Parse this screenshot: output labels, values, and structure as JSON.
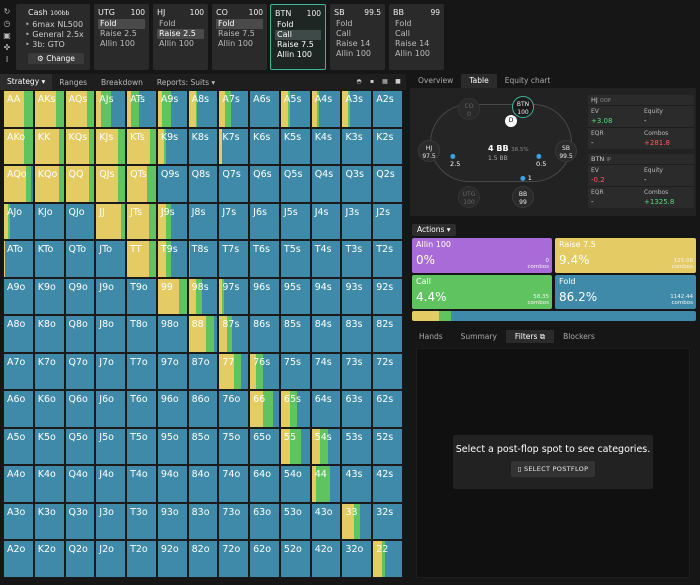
{
  "colors": {
    "fold": "#3e8aa8",
    "call": "#5fc460",
    "raise": "#e4cb63",
    "allin": "#a86bd8",
    "accent": "#3fb59a"
  },
  "sidebar_icons": [
    "refresh-icon",
    "clock-icon",
    "save-icon",
    "gamepad-icon",
    "text-cursor-icon"
  ],
  "cash": {
    "title": "Cash",
    "stack": "100bb",
    "items": [
      "6max NL500",
      "General 2.5x",
      "3b: GTO"
    ],
    "change_label": "Change",
    "change_icon": "⚙"
  },
  "positions": [
    {
      "name": "UTG",
      "stack": "100",
      "actions": [
        "Fold",
        "Raise 2.5",
        "Allin 100"
      ],
      "selected": 0
    },
    {
      "name": "HJ",
      "stack": "100",
      "actions": [
        "Fold",
        "Raise 2.5",
        "Allin 100"
      ],
      "selected": 1
    },
    {
      "name": "CO",
      "stack": "100",
      "actions": [
        "Fold",
        "Raise 7.5",
        "Allin 100"
      ],
      "selected": 0
    },
    {
      "name": "BTN",
      "stack": "100",
      "actions": [
        "Fold",
        "Call",
        "Raise 7.5",
        "Allin 100"
      ],
      "selected": 1,
      "active": true
    },
    {
      "name": "SB",
      "stack": "99.5",
      "actions": [
        "Fold",
        "Call",
        "Raise 14",
        "Allin 100"
      ],
      "selected": -1
    },
    {
      "name": "BB",
      "stack": "99",
      "actions": [
        "Fold",
        "Call",
        "Raise 14",
        "Allin 100"
      ],
      "selected": -1
    }
  ],
  "strategy_tabs": [
    "Strategy ▾",
    "Ranges",
    "Breakdown",
    "Reports: Suits ▾"
  ],
  "view_icons": [
    "compact-view-icon",
    "expand-view-icon",
    "grid-view-icon",
    "square-view-icon"
  ],
  "right_tabs": [
    "Overview",
    "Table",
    "Equity chart"
  ],
  "table": {
    "seats": [
      {
        "pos": "CO",
        "stack": "0"
      },
      {
        "pos": "BTN",
        "stack": "100"
      },
      {
        "pos": "SB",
        "stack": "99.5"
      },
      {
        "pos": "BB",
        "stack": "99"
      },
      {
        "pos": "UTG",
        "stack": "100"
      },
      {
        "pos": "HJ",
        "stack": "97.5"
      }
    ],
    "pot": "4 BB",
    "pot_pct": "38.5%",
    "pot_sub": "1.5 BB",
    "dealer": "D",
    "bets": {
      "hj": "2.5",
      "sb": "0.5",
      "bb": "1"
    }
  },
  "stats": [
    {
      "header": "HJ",
      "sub": "OOP",
      "ev": "+3.08",
      "equity": "-",
      "eqr": "-",
      "combos": "+281.8"
    },
    {
      "header": "BTN",
      "sub": "IP",
      "ev": "-0.2",
      "equity": "-",
      "eqr": "-",
      "combos": "+1325.8"
    }
  ],
  "stat_labels": {
    "ev": "EV",
    "equity": "Equity",
    "eqr": "EQR",
    "combos": "Combos"
  },
  "actions_label": "Actions ▾",
  "actions": [
    {
      "name": "Allin 100",
      "pct": "0%",
      "combos": "0",
      "frac": 0.0
    },
    {
      "name": "Raise 7.5",
      "pct": "9.4%",
      "combos": "125.08",
      "frac": 0.094
    },
    {
      "name": "Call",
      "pct": "4.4%",
      "combos": "58.35",
      "frac": 0.044
    },
    {
      "name": "Fold",
      "pct": "86.2%",
      "combos": "1142.44",
      "frac": 0.862
    }
  ],
  "combos_word": "combos",
  "bottom_tabs": [
    "Hands",
    "Summary",
    "Filters",
    "Blockers"
  ],
  "filters_message": "Select a post-flop spot to see categories.",
  "select_postflop": "SELECT POSTFLOP",
  "ranks": [
    "A",
    "K",
    "Q",
    "J",
    "T",
    "9",
    "8",
    "7",
    "6",
    "5",
    "4",
    "3",
    "2"
  ],
  "grid": [
    [
      [
        0,
        0.3,
        0.7
      ],
      [
        0,
        0.25,
        0.75
      ],
      [
        0,
        0.25,
        0.75
      ],
      [
        0.5,
        0.35,
        0.15
      ],
      [
        0.6,
        0.25,
        0.15
      ],
      [
        0.55,
        0.3,
        0.15
      ],
      [
        0.7,
        0.05,
        0.25
      ],
      [
        0.6,
        0.2,
        0.2
      ],
      [
        1,
        0,
        0
      ],
      [
        0.7,
        0.05,
        0.25
      ],
      [
        0.75,
        0.05,
        0.2
      ],
      [
        0.75,
        0.05,
        0.2
      ],
      [
        1,
        0,
        0
      ]
    ],
    [
      [
        0,
        0.3,
        0.7
      ],
      [
        0,
        0.15,
        0.85
      ],
      [
        0,
        0.2,
        0.8
      ],
      [
        0,
        0.25,
        0.75
      ],
      [
        0,
        0.2,
        0.8
      ],
      [
        0.7,
        0.1,
        0.2
      ],
      [
        1,
        0,
        0
      ],
      [
        0.9,
        0,
        0.1
      ],
      [
        1,
        0,
        0
      ],
      [
        1,
        0,
        0
      ],
      [
        1,
        0,
        0
      ],
      [
        1,
        0,
        0
      ],
      [
        1,
        0,
        0
      ]
    ],
    [
      [
        0.05,
        0.2,
        0.75
      ],
      [
        0,
        0.15,
        0.85
      ],
      [
        0,
        0.2,
        0.8
      ],
      [
        0,
        0.25,
        0.75
      ],
      [
        0,
        0.3,
        0.7
      ],
      [
        1,
        0,
        0
      ],
      [
        1,
        0,
        0
      ],
      [
        1,
        0,
        0
      ],
      [
        1,
        0,
        0
      ],
      [
        1,
        0,
        0
      ],
      [
        1,
        0,
        0
      ],
      [
        1,
        0,
        0
      ],
      [
        1,
        0,
        0
      ]
    ],
    [
      [
        0.8,
        0.05,
        0.15
      ],
      [
        1,
        0,
        0
      ],
      [
        1,
        0,
        0
      ],
      [
        0,
        0.15,
        0.85
      ],
      [
        0,
        0.25,
        0.75
      ],
      [
        0.55,
        0.15,
        0.3
      ],
      [
        1,
        0,
        0
      ],
      [
        1,
        0,
        0
      ],
      [
        1,
        0,
        0
      ],
      [
        1,
        0,
        0
      ],
      [
        1,
        0,
        0
      ],
      [
        1,
        0,
        0
      ],
      [
        1,
        0,
        0
      ]
    ],
    [
      [
        0.95,
        0,
        0.05
      ],
      [
        1,
        0,
        0
      ],
      [
        1,
        0,
        0
      ],
      [
        1,
        0,
        0
      ],
      [
        0,
        0.25,
        0.75
      ],
      [
        0.55,
        0.15,
        0.3
      ],
      [
        0.95,
        0.05,
        0
      ],
      [
        1,
        0,
        0
      ],
      [
        1,
        0,
        0
      ],
      [
        1,
        0,
        0
      ],
      [
        1,
        0,
        0
      ],
      [
        1,
        0,
        0
      ],
      [
        1,
        0,
        0
      ]
    ],
    [
      [
        1,
        0,
        0
      ],
      [
        1,
        0,
        0
      ],
      [
        1,
        0,
        0
      ],
      [
        1,
        0,
        0
      ],
      [
        1,
        0,
        0
      ],
      [
        0,
        0.25,
        0.75
      ],
      [
        0.55,
        0.2,
        0.25
      ],
      [
        0.85,
        0.05,
        0.1
      ],
      [
        1,
        0,
        0
      ],
      [
        1,
        0,
        0
      ],
      [
        1,
        0,
        0
      ],
      [
        1,
        0,
        0
      ],
      [
        1,
        0,
        0
      ]
    ],
    [
      [
        1,
        0,
        0
      ],
      [
        1,
        0,
        0
      ],
      [
        1,
        0,
        0
      ],
      [
        1,
        0,
        0
      ],
      [
        1,
        0,
        0
      ],
      [
        1,
        0,
        0
      ],
      [
        0.1,
        0.3,
        0.6
      ],
      [
        0.55,
        0.2,
        0.25
      ],
      [
        1,
        0,
        0
      ],
      [
        1,
        0,
        0
      ],
      [
        1,
        0,
        0
      ],
      [
        1,
        0,
        0
      ],
      [
        1,
        0,
        0
      ]
    ],
    [
      [
        1,
        0,
        0
      ],
      [
        1,
        0,
        0
      ],
      [
        1,
        0,
        0
      ],
      [
        1,
        0,
        0
      ],
      [
        1,
        0,
        0
      ],
      [
        1,
        0,
        0
      ],
      [
        1,
        0,
        0
      ],
      [
        0.25,
        0.25,
        0.5
      ],
      [
        0.55,
        0.25,
        0.2
      ],
      [
        1,
        0,
        0
      ],
      [
        1,
        0,
        0
      ],
      [
        1,
        0,
        0
      ],
      [
        1,
        0,
        0
      ]
    ],
    [
      [
        1,
        0,
        0
      ],
      [
        1,
        0,
        0
      ],
      [
        1,
        0,
        0
      ],
      [
        1,
        0,
        0
      ],
      [
        1,
        0,
        0
      ],
      [
        1,
        0,
        0
      ],
      [
        1,
        0,
        0
      ],
      [
        1,
        0,
        0
      ],
      [
        0.2,
        0.35,
        0.45
      ],
      [
        0.45,
        0.25,
        0.3
      ],
      [
        1,
        0,
        0
      ],
      [
        1,
        0,
        0
      ],
      [
        1,
        0,
        0
      ]
    ],
    [
      [
        1,
        0,
        0
      ],
      [
        1,
        0,
        0
      ],
      [
        1,
        0,
        0
      ],
      [
        1,
        0,
        0
      ],
      [
        1,
        0,
        0
      ],
      [
        1,
        0,
        0
      ],
      [
        1,
        0,
        0
      ],
      [
        1,
        0,
        0
      ],
      [
        1,
        0,
        0
      ],
      [
        0.3,
        0.4,
        0.3
      ],
      [
        0.45,
        0.25,
        0.3
      ],
      [
        1,
        0,
        0
      ],
      [
        1,
        0,
        0
      ]
    ],
    [
      [
        1,
        0,
        0
      ],
      [
        1,
        0,
        0
      ],
      [
        1,
        0,
        0
      ],
      [
        1,
        0,
        0
      ],
      [
        1,
        0,
        0
      ],
      [
        1,
        0,
        0
      ],
      [
        1,
        0,
        0
      ],
      [
        1,
        0,
        0
      ],
      [
        1,
        0,
        0
      ],
      [
        1,
        0,
        0
      ],
      [
        0.35,
        0.5,
        0.15
      ],
      [
        1,
        0,
        0
      ],
      [
        1,
        0,
        0
      ]
    ],
    [
      [
        1,
        0,
        0
      ],
      [
        1,
        0,
        0
      ],
      [
        1,
        0,
        0
      ],
      [
        1,
        0,
        0
      ],
      [
        1,
        0,
        0
      ],
      [
        1,
        0,
        0
      ],
      [
        1,
        0,
        0
      ],
      [
        1,
        0,
        0
      ],
      [
        1,
        0,
        0
      ],
      [
        1,
        0,
        0
      ],
      [
        1,
        0,
        0
      ],
      [
        0.4,
        0.2,
        0.4
      ],
      [
        1,
        0,
        0
      ]
    ],
    [
      [
        1,
        0,
        0
      ],
      [
        1,
        0,
        0
      ],
      [
        1,
        0,
        0
      ],
      [
        1,
        0,
        0
      ],
      [
        1,
        0,
        0
      ],
      [
        1,
        0,
        0
      ],
      [
        1,
        0,
        0
      ],
      [
        1,
        0,
        0
      ],
      [
        1,
        0,
        0
      ],
      [
        1,
        0,
        0
      ],
      [
        1,
        0,
        0
      ],
      [
        1,
        0,
        0
      ],
      [
        0.6,
        0.1,
        0.3
      ]
    ]
  ]
}
